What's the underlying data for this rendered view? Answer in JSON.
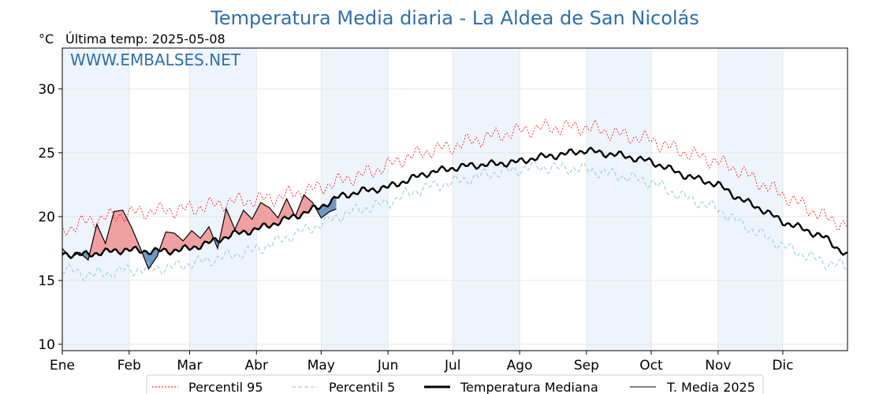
{
  "chart_data": {
    "type": "line",
    "title": "Temperatura Media diaria - La Aldea de San Nicolás",
    "unit": "°C",
    "last_temp_label": "Última temp: 2025-05-08",
    "watermark": "WWW.EMBALSES.NET",
    "ylim": [
      9.5,
      33.2
    ],
    "yticks": [
      10,
      15,
      20,
      25,
      30
    ],
    "xlim": [
      1,
      365
    ],
    "months": [
      {
        "label": "Ene",
        "start": 1
      },
      {
        "label": "Feb",
        "start": 32
      },
      {
        "label": "Mar",
        "start": 60
      },
      {
        "label": "Abr",
        "start": 91
      },
      {
        "label": "May",
        "start": 121
      },
      {
        "label": "Jun",
        "start": 152
      },
      {
        "label": "Jul",
        "start": 182
      },
      {
        "label": "Ago",
        "start": 213
      },
      {
        "label": "Sep",
        "start": 244
      },
      {
        "label": "Oct",
        "start": 274
      },
      {
        "label": "Nov",
        "start": 305
      },
      {
        "label": "Dic",
        "start": 335
      }
    ],
    "grid": true,
    "legend_position": "bottom",
    "colors": {
      "p95": "#ff0000",
      "p5": "#9fd0e0",
      "median": "#000000",
      "current": "#000000",
      "above_fill": "#f0a0a0",
      "below_fill": "#6f97bf",
      "band": "#eef4fb",
      "title": "#2f6fa6"
    },
    "series": [
      {
        "name": "Percentil 95",
        "style": "dashed-thin-red",
        "anchors": {
          "x": [
            1,
            10,
            20,
            30,
            40,
            50,
            60,
            70,
            80,
            91,
            100,
            110,
            121,
            130,
            140,
            152,
            160,
            170,
            182,
            190,
            200,
            213,
            220,
            230,
            244,
            250,
            260,
            274,
            280,
            290,
            305,
            315,
            325,
            335,
            345,
            355,
            365
          ],
          "y": [
            18.9,
            19.5,
            19.9,
            20.2,
            20.4,
            20.5,
            20.6,
            20.9,
            21.2,
            21.3,
            21.5,
            21.9,
            22.3,
            22.8,
            23.3,
            24.0,
            24.6,
            25.1,
            25.5,
            25.9,
            26.3,
            26.7,
            26.9,
            27.0,
            27.0,
            26.8,
            26.4,
            26.0,
            25.6,
            25.0,
            24.3,
            23.6,
            22.6,
            21.7,
            20.8,
            19.9,
            19.3
          ]
        }
      },
      {
        "name": "Percentil 5",
        "style": "dashed-thin-lightblue",
        "anchors": {
          "x": [
            1,
            10,
            20,
            30,
            40,
            50,
            60,
            70,
            80,
            91,
            100,
            110,
            121,
            130,
            140,
            152,
            160,
            170,
            182,
            190,
            200,
            213,
            220,
            230,
            244,
            250,
            260,
            274,
            280,
            290,
            305,
            315,
            325,
            335,
            345,
            355,
            365
          ],
          "y": [
            16.0,
            15.5,
            15.5,
            15.8,
            15.9,
            16.0,
            16.3,
            16.6,
            17.0,
            17.4,
            18.0,
            18.7,
            19.4,
            20.1,
            20.6,
            21.1,
            21.7,
            22.3,
            22.7,
            23.0,
            23.4,
            23.7,
            23.9,
            23.8,
            23.7,
            23.5,
            23.2,
            22.7,
            22.2,
            21.5,
            20.6,
            19.5,
            18.6,
            17.7,
            17.0,
            16.4,
            16.1
          ]
        }
      },
      {
        "name": "Temperatura Mediana",
        "style": "solid-thick-black",
        "anchors": {
          "x": [
            1,
            10,
            20,
            30,
            40,
            50,
            60,
            70,
            80,
            91,
            100,
            110,
            121,
            130,
            140,
            152,
            160,
            170,
            182,
            190,
            200,
            213,
            220,
            230,
            244,
            250,
            260,
            274,
            280,
            290,
            305,
            315,
            325,
            335,
            345,
            355,
            365
          ],
          "y": [
            17.1,
            17.0,
            17.2,
            17.4,
            17.3,
            17.3,
            17.5,
            18.0,
            18.6,
            19.0,
            19.5,
            20.1,
            20.8,
            21.6,
            22.0,
            22.3,
            22.8,
            23.4,
            23.8,
            24.0,
            24.1,
            24.3,
            24.6,
            24.8,
            25.2,
            25.0,
            24.8,
            24.3,
            23.9,
            23.2,
            22.5,
            21.4,
            20.6,
            19.6,
            19.0,
            18.3,
            16.9
          ]
        }
      },
      {
        "name": "T. Media 2025",
        "style": "solid-thin-black",
        "x": [
          1,
          5,
          9,
          13,
          17,
          21,
          25,
          29,
          33,
          37,
          41,
          45,
          49,
          53,
          57,
          61,
          65,
          69,
          73,
          77,
          81,
          85,
          89,
          93,
          97,
          101,
          105,
          109,
          113,
          117,
          121,
          125,
          128
        ],
        "y": [
          17.5,
          16.8,
          17.2,
          16.6,
          19.4,
          17.9,
          20.4,
          20.5,
          19.2,
          17.6,
          15.9,
          16.9,
          18.8,
          18.7,
          18.1,
          18.9,
          18.3,
          19.2,
          17.5,
          20.6,
          19.0,
          20.5,
          19.8,
          21.1,
          20.7,
          19.9,
          21.4,
          20.0,
          21.7,
          21.1,
          19.9,
          20.4,
          20.6
        ]
      }
    ]
  },
  "legend": {
    "items": [
      {
        "label": "Percentil 95"
      },
      {
        "label": "Percentil 5"
      },
      {
        "label": "Temperatura Mediana"
      },
      {
        "label": "T. Media 2025"
      }
    ]
  }
}
